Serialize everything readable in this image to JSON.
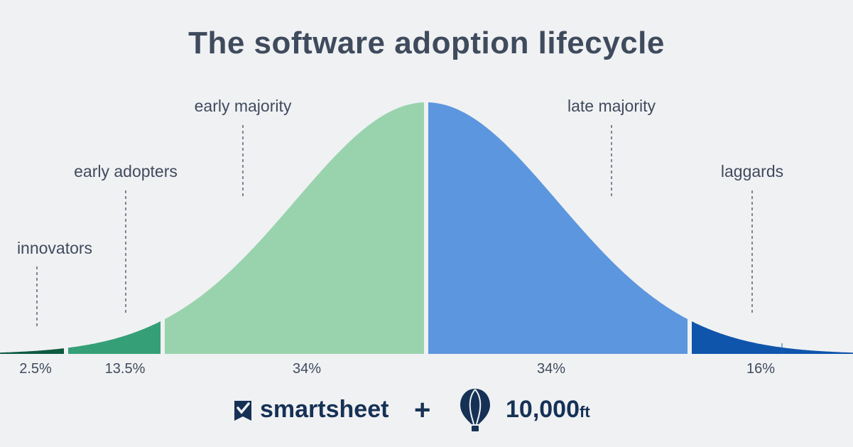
{
  "title": "The software adoption lifecycle",
  "segments": [
    {
      "label": "innovators",
      "percent": "2.5%",
      "value": 2.5,
      "color": "#0d5a3f"
    },
    {
      "label": "early adopters",
      "percent": "13.5%",
      "value": 13.5,
      "color": "#35a078"
    },
    {
      "label": "early majority",
      "percent": "34%",
      "value": 34,
      "color": "#99d3ad"
    },
    {
      "label": "late majority",
      "percent": "34%",
      "value": 34,
      "color": "#5c96de"
    },
    {
      "label": "laggards",
      "percent": "16%",
      "value": 16,
      "color": "#0f55ab"
    }
  ],
  "footer": {
    "brand1": "smartsheet",
    "plus": "+",
    "brand2": "10,000",
    "brand2_suffix": "ft",
    "brand1_icon": "smartsheet-check-icon",
    "brand2_icon": "balloon-icon"
  },
  "colors": {
    "background": "#f0f1f3",
    "text": "#3f4b5d",
    "brand": "#163156"
  }
}
